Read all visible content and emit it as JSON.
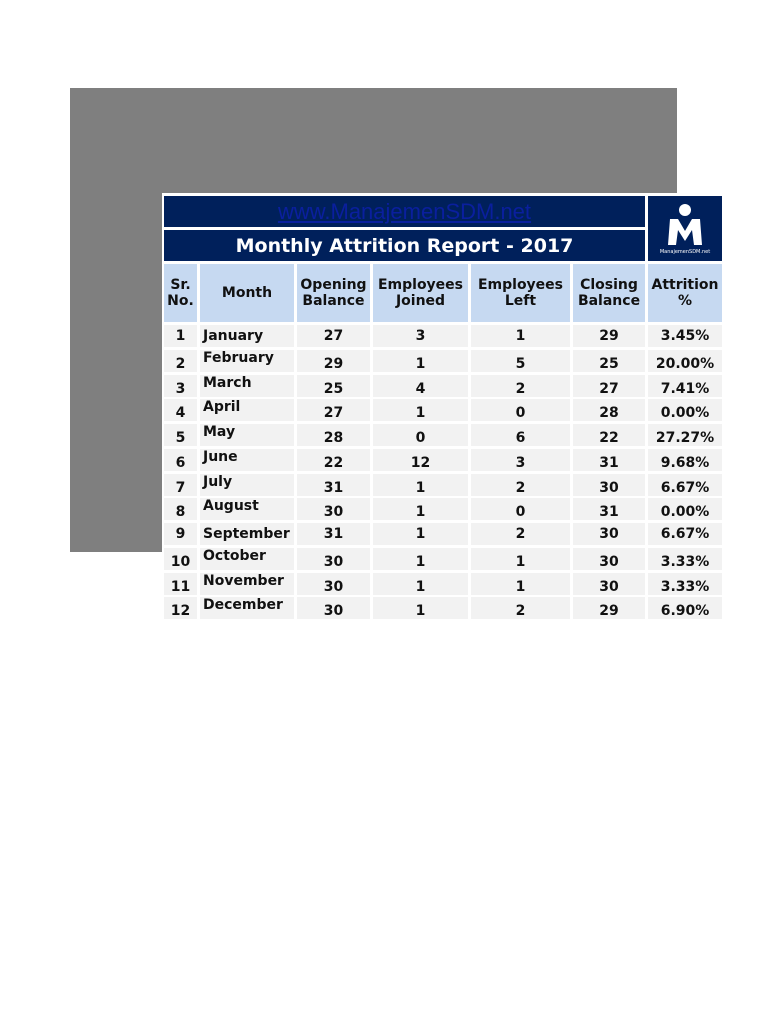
{
  "header": {
    "url": "www.ManajemenSDM.net",
    "title": "Monthly Attrition Report - 2017",
    "logo": {
      "icon": "person-m-logo-icon",
      "brand": "ManajemenSDM.net"
    }
  },
  "colors": {
    "navy": "#00205b",
    "header_blue": "#c6d9f1",
    "row_gray": "#f2f2f2",
    "frame_gray": "#7f7f7f",
    "url_link": "#0a1f9e"
  },
  "columns": [
    "Sr. No.",
    "Month",
    "Opening Balance",
    "Employees Joined",
    "Employees Left",
    "Closing Balance",
    "Attrition %"
  ],
  "column_lines": [
    [
      "Sr.",
      "No."
    ],
    [
      "Month"
    ],
    [
      "Opening",
      "Balance"
    ],
    [
      "Employees",
      "Joined"
    ],
    [
      "Employees",
      "Left"
    ],
    [
      "Closing",
      "Balance"
    ],
    [
      "Attrition",
      "%"
    ]
  ],
  "rows": [
    [
      "1",
      "January",
      "27",
      "3",
      "1",
      "29",
      "3.45%"
    ],
    [
      "2",
      "February",
      "29",
      "1",
      "5",
      "25",
      "20.00%"
    ],
    [
      "3",
      "March",
      "25",
      "4",
      "2",
      "27",
      "7.41%"
    ],
    [
      "4",
      "April",
      "27",
      "1",
      "0",
      "28",
      "0.00%"
    ],
    [
      "5",
      "May",
      "28",
      "0",
      "6",
      "22",
      "27.27%"
    ],
    [
      "6",
      "June",
      "22",
      "12",
      "3",
      "31",
      "9.68%"
    ],
    [
      "7",
      "July",
      "31",
      "1",
      "2",
      "30",
      "6.67%"
    ],
    [
      "8",
      "August",
      "30",
      "1",
      "0",
      "31",
      "0.00%"
    ],
    [
      "9",
      "September",
      "31",
      "1",
      "2",
      "30",
      "6.67%"
    ],
    [
      "10",
      "October",
      "30",
      "1",
      "1",
      "30",
      "3.33%"
    ],
    [
      "11",
      "November",
      "30",
      "1",
      "1",
      "30",
      "3.33%"
    ],
    [
      "12",
      "December",
      "30",
      "1",
      "2",
      "29",
      "6.90%"
    ]
  ]
}
